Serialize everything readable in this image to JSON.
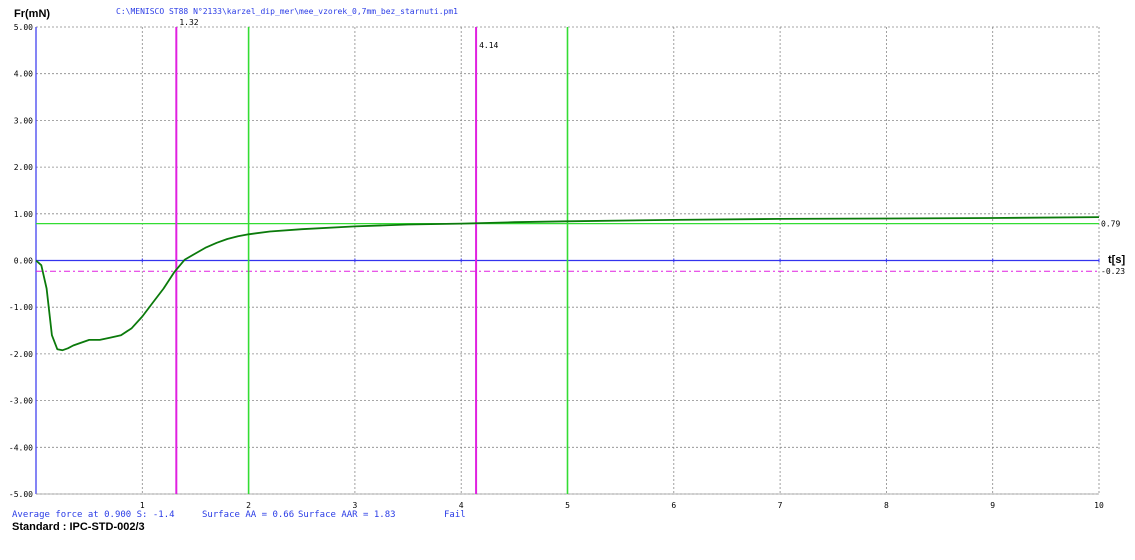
{
  "chart_data": {
    "type": "line",
    "title": "C:\\MENISCO ST88 N°2133\\karzel_dip_mer\\mee_vzorek_0,7mm_bez_starnuti.pm1",
    "ylabel": "Fr(mN)",
    "xlabel": "t[s]",
    "xlim": [
      0,
      10
    ],
    "ylim": [
      -5,
      5
    ],
    "x_ticks": [
      1,
      2,
      3,
      4,
      5,
      6,
      7,
      8,
      9,
      10
    ],
    "y_ticks": [
      5,
      4,
      3,
      2,
      1,
      0,
      -1,
      -2,
      -3,
      -4,
      -5
    ],
    "y_tick_labels": [
      "5.00",
      "4.00",
      "3.00",
      "2.00",
      "1.00",
      "0.00",
      "-1.00",
      "-2.00",
      "-3.00",
      "-4.00",
      "-5.00"
    ],
    "grid": true,
    "series": [
      {
        "color": "#0b7a0b",
        "x": [
          0,
          0.05,
          0.1,
          0.15,
          0.2,
          0.25,
          0.3,
          0.35,
          0.4,
          0.5,
          0.55,
          0.6,
          0.7,
          0.8,
          0.9,
          1.0,
          1.1,
          1.2,
          1.3,
          1.4,
          1.5,
          1.6,
          1.7,
          1.8,
          1.9,
          2.0,
          2.2,
          2.5,
          3.0,
          3.5,
          4.0,
          4.5,
          5.0,
          6.0,
          7.0,
          8.0,
          9.0,
          10.0
        ],
        "y": [
          0.0,
          -0.1,
          -0.6,
          -1.6,
          -1.9,
          -1.92,
          -1.88,
          -1.82,
          -1.78,
          -1.7,
          -1.7,
          -1.7,
          -1.65,
          -1.6,
          -1.45,
          -1.2,
          -0.9,
          -0.6,
          -0.25,
          0.02,
          0.15,
          0.28,
          0.38,
          0.46,
          0.52,
          0.56,
          0.62,
          0.67,
          0.73,
          0.77,
          0.79,
          0.82,
          0.84,
          0.87,
          0.89,
          0.9,
          0.91,
          0.93
        ]
      }
    ],
    "vertical_lines": [
      {
        "x": 1.32,
        "label": "1.32",
        "color": "#e020e0"
      },
      {
        "x": 4.14,
        "label": "4.14",
        "color": "#e020e0"
      },
      {
        "x": 2,
        "label": "",
        "color": "#33dd33"
      },
      {
        "x": 5,
        "label": "",
        "color": "#33dd33"
      }
    ],
    "horizontal_lines": [
      {
        "y": 0.79,
        "label": "0.79",
        "color": "#33dd33",
        "style": "solid"
      },
      {
        "y": -0.23,
        "label": "-0.23",
        "color": "#e020e0",
        "style": "dashdot"
      }
    ],
    "colors": {
      "axis": "#3333ee",
      "grid": "#888888",
      "title": "#2a3ce6"
    }
  },
  "footer": {
    "average_force": "Average force at 0.900 S: -1.4",
    "surface_aa": "Surface AA = 0.66",
    "surface_aar": "Surface AAR = 1.83",
    "result": "Fail",
    "standard": "Standard : IPC-STD-002/3"
  }
}
